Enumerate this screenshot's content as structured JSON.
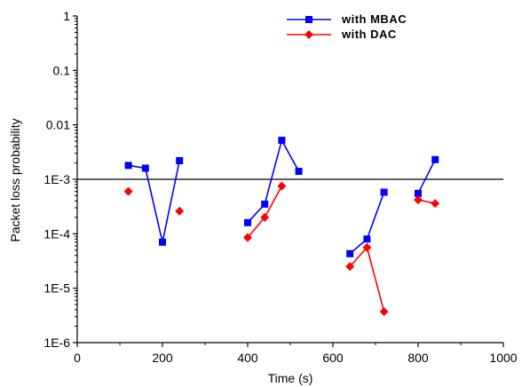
{
  "chart_data": {
    "type": "line",
    "title": "",
    "xlabel": "Time (s)",
    "ylabel": "Packet loss probability",
    "xlim": [
      0,
      1000
    ],
    "ylim": [
      1e-06,
      1
    ],
    "yscale": "log",
    "grid": false,
    "legend_position": "top-right",
    "x_ticks": [
      0,
      200,
      400,
      600,
      800,
      1000
    ],
    "x_tick_labels": [
      "0",
      "200",
      "400",
      "600",
      "800",
      "1000"
    ],
    "y_ticks": [
      1,
      0.1,
      0.01,
      0.001,
      0.0001,
      1e-05,
      1e-06
    ],
    "y_tick_labels": [
      "1",
      "0.1",
      "0.01",
      "1E-3",
      "1E-4",
      "1E-5",
      "1E-6"
    ],
    "reference_line": {
      "y": 0.001,
      "color": "#000000"
    },
    "series": [
      {
        "name": "with MBAC",
        "color": "#0000ff",
        "marker": "square",
        "segments": [
          [
            [
              120,
              0.0018
            ],
            [
              160,
              0.0016
            ],
            [
              200,
              7e-05
            ],
            [
              240,
              0.0022
            ]
          ],
          [
            [
              400,
              0.00016
            ],
            [
              440,
              0.00035
            ],
            [
              480,
              0.0052
            ],
            [
              520,
              0.0014
            ]
          ],
          [
            [
              640,
              4.3e-05
            ],
            [
              680,
              8e-05
            ],
            [
              720,
              0.00058
            ]
          ],
          [
            [
              800,
              0.00055
            ],
            [
              840,
              0.0023
            ]
          ]
        ]
      },
      {
        "name": "with DAC",
        "color": "#ff0000",
        "marker": "diamond",
        "segments": [
          [
            [
              120,
              0.0006
            ]
          ],
          [
            [
              240,
              0.00026
            ]
          ],
          [
            [
              400,
              8.5e-05
            ],
            [
              440,
              0.0002
            ],
            [
              480,
              0.00075
            ]
          ],
          [
            [
              640,
              2.5e-05
            ],
            [
              680,
              5.6e-05
            ],
            [
              720,
              3.7e-06
            ]
          ],
          [
            [
              800,
              0.00042
            ],
            [
              840,
              0.00036
            ]
          ]
        ]
      }
    ]
  }
}
